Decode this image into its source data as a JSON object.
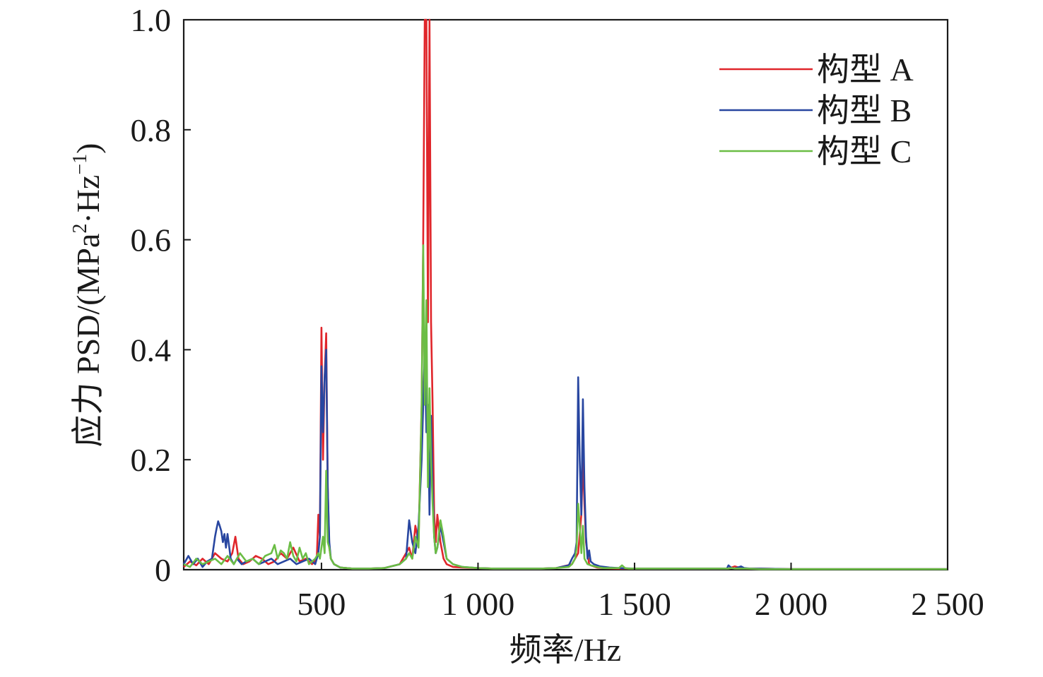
{
  "chart_data": {
    "type": "line",
    "title": "",
    "xlabel": "频率/Hz",
    "ylabel": {
      "prefix": "应力 PSD/(MPa",
      "sup1": "2",
      "middle": "·Hz",
      "sup2": "−1",
      "suffix": ")"
    },
    "xlim": [
      60,
      2500
    ],
    "ylim": [
      0,
      1.0
    ],
    "x_ticks": [
      500,
      1000,
      1500,
      2000,
      2500
    ],
    "x_tick_labels": [
      "500",
      "1 000",
      "1 500",
      "2 000",
      "2 500"
    ],
    "y_ticks": [
      0,
      0.2,
      0.4,
      0.6,
      0.8,
      1.0
    ],
    "y_tick_labels": [
      "0",
      "0.2",
      "0.4",
      "0.6",
      "0.8",
      "1.0"
    ],
    "grid": false,
    "legend_position": "top-right",
    "series": [
      {
        "name": "构型 A",
        "color": "#e0262b",
        "x": [
          60,
          80,
          100,
          120,
          140,
          160,
          180,
          200,
          215,
          225,
          235,
          250,
          270,
          290,
          310,
          330,
          350,
          370,
          390,
          410,
          430,
          450,
          470,
          485,
          490,
          495,
          500,
          505,
          510,
          515,
          520,
          525,
          530,
          540,
          560,
          580,
          600,
          650,
          700,
          750,
          770,
          780,
          790,
          800,
          810,
          820,
          825,
          830,
          835,
          840,
          845,
          850,
          855,
          860,
          865,
          870,
          880,
          890,
          900,
          920,
          950,
          1000,
          1050,
          1100,
          1150,
          1200,
          1250,
          1300,
          1320,
          1330,
          1335,
          1340,
          1345,
          1350,
          1355,
          1360,
          1380,
          1400,
          1450,
          1500,
          1600,
          1700,
          1800,
          1820,
          1840,
          1860,
          1900,
          2000,
          2500
        ],
        "y": [
          0.005,
          0.015,
          0.008,
          0.02,
          0.01,
          0.03,
          0.02,
          0.015,
          0.03,
          0.06,
          0.02,
          0.01,
          0.015,
          0.025,
          0.02,
          0.01,
          0.015,
          0.03,
          0.02,
          0.04,
          0.015,
          0.02,
          0.01,
          0.02,
          0.1,
          0.06,
          0.44,
          0.2,
          0.35,
          0.43,
          0.15,
          0.04,
          0.02,
          0.01,
          0.004,
          0.003,
          0.002,
          0.002,
          0.003,
          0.01,
          0.03,
          0.04,
          0.02,
          0.08,
          0.05,
          0.3,
          0.6,
          1.0,
          1.0,
          0.45,
          1.0,
          0.45,
          0.3,
          0.1,
          0.05,
          0.1,
          0.05,
          0.02,
          0.01,
          0.005,
          0.004,
          0.003,
          0.002,
          0.002,
          0.002,
          0.002,
          0.003,
          0.01,
          0.03,
          0.1,
          0.2,
          0.12,
          0.05,
          0.03,
          0.01,
          0.008,
          0.004,
          0.003,
          0.002,
          0.002,
          0.002,
          0.002,
          0.002,
          0.006,
          0.003,
          0.002,
          0.002,
          0.001,
          0.001
        ]
      },
      {
        "name": "构型 B",
        "color": "#2846a0",
        "x": [
          60,
          75,
          90,
          105,
          120,
          135,
          150,
          160,
          165,
          170,
          175,
          180,
          185,
          190,
          195,
          200,
          210,
          220,
          230,
          245,
          260,
          280,
          300,
          320,
          340,
          360,
          380,
          400,
          420,
          440,
          460,
          480,
          490,
          495,
          500,
          505,
          510,
          515,
          520,
          525,
          530,
          540,
          560,
          580,
          600,
          650,
          700,
          750,
          770,
          780,
          790,
          795,
          800,
          810,
          820,
          825,
          830,
          835,
          840,
          845,
          850,
          855,
          860,
          865,
          870,
          880,
          890,
          900,
          920,
          950,
          1000,
          1050,
          1100,
          1150,
          1200,
          1250,
          1290,
          1300,
          1310,
          1315,
          1320,
          1325,
          1330,
          1335,
          1340,
          1345,
          1350,
          1355,
          1360,
          1370,
          1390,
          1420,
          1450,
          1500,
          1600,
          1700,
          1790,
          1795,
          1800,
          1810,
          1820,
          1830,
          1840,
          1850,
          1870,
          1900,
          2000,
          2500
        ],
        "y": [
          0.01,
          0.025,
          0.01,
          0.02,
          0.005,
          0.015,
          0.02,
          0.06,
          0.075,
          0.088,
          0.08,
          0.07,
          0.05,
          0.065,
          0.04,
          0.065,
          0.02,
          0.01,
          0.02,
          0.01,
          0.015,
          0.02,
          0.01,
          0.015,
          0.02,
          0.01,
          0.015,
          0.02,
          0.01,
          0.015,
          0.02,
          0.01,
          0.03,
          0.06,
          0.37,
          0.25,
          0.35,
          0.4,
          0.15,
          0.05,
          0.02,
          0.01,
          0.004,
          0.003,
          0.002,
          0.002,
          0.003,
          0.01,
          0.02,
          0.09,
          0.05,
          0.04,
          0.03,
          0.08,
          0.2,
          0.3,
          0.4,
          0.25,
          0.3,
          0.1,
          0.28,
          0.15,
          0.06,
          0.03,
          0.04,
          0.08,
          0.05,
          0.02,
          0.01,
          0.005,
          0.003,
          0.002,
          0.002,
          0.002,
          0.002,
          0.003,
          0.008,
          0.02,
          0.03,
          0.05,
          0.35,
          0.2,
          0.1,
          0.31,
          0.15,
          0.06,
          0.02,
          0.035,
          0.015,
          0.01,
          0.006,
          0.004,
          0.003,
          0.002,
          0.002,
          0.002,
          0.002,
          0.002,
          0.008,
          0.003,
          0.002,
          0.004,
          0.006,
          0.003,
          0.002,
          0.002,
          0.001,
          0.001
        ]
      },
      {
        "name": "构型 C",
        "color": "#6bbd45",
        "x": [
          60,
          80,
          100,
          120,
          140,
          160,
          180,
          200,
          220,
          240,
          260,
          280,
          300,
          320,
          340,
          350,
          360,
          370,
          380,
          390,
          400,
          410,
          420,
          430,
          440,
          450,
          460,
          470,
          480,
          490,
          495,
          500,
          505,
          510,
          515,
          520,
          525,
          530,
          540,
          560,
          580,
          600,
          650,
          700,
          750,
          770,
          780,
          790,
          800,
          810,
          820,
          825,
          830,
          835,
          840,
          845,
          850,
          855,
          860,
          865,
          870,
          880,
          890,
          900,
          920,
          950,
          1000,
          1050,
          1100,
          1150,
          1200,
          1250,
          1290,
          1300,
          1310,
          1315,
          1320,
          1325,
          1330,
          1335,
          1340,
          1345,
          1350,
          1360,
          1380,
          1400,
          1450,
          1460,
          1470,
          1480,
          1500,
          1600,
          1700,
          1800,
          1810,
          1820,
          1840,
          1860,
          1900,
          2000,
          2500
        ],
        "y": [
          0.01,
          0.005,
          0.02,
          0.01,
          0.015,
          0.02,
          0.01,
          0.025,
          0.01,
          0.03,
          0.015,
          0.02,
          0.01,
          0.025,
          0.03,
          0.045,
          0.02,
          0.035,
          0.03,
          0.02,
          0.05,
          0.025,
          0.015,
          0.04,
          0.02,
          0.03,
          0.01,
          0.015,
          0.02,
          0.03,
          0.02,
          0.04,
          0.06,
          0.03,
          0.18,
          0.05,
          0.04,
          0.02,
          0.01,
          0.004,
          0.003,
          0.002,
          0.002,
          0.003,
          0.01,
          0.02,
          0.03,
          0.02,
          0.06,
          0.04,
          0.3,
          0.59,
          0.3,
          0.49,
          0.15,
          0.33,
          0.2,
          0.12,
          0.06,
          0.03,
          0.04,
          0.09,
          0.06,
          0.02,
          0.01,
          0.005,
          0.003,
          0.002,
          0.002,
          0.002,
          0.002,
          0.003,
          0.005,
          0.01,
          0.02,
          0.04,
          0.12,
          0.08,
          0.03,
          0.08,
          0.02,
          0.015,
          0.01,
          0.008,
          0.005,
          0.003,
          0.003,
          0.008,
          0.003,
          0.002,
          0.002,
          0.002,
          0.002,
          0.002,
          0.003,
          0.002,
          0.002,
          0.002,
          0.001,
          0.001,
          0.001
        ]
      }
    ]
  }
}
